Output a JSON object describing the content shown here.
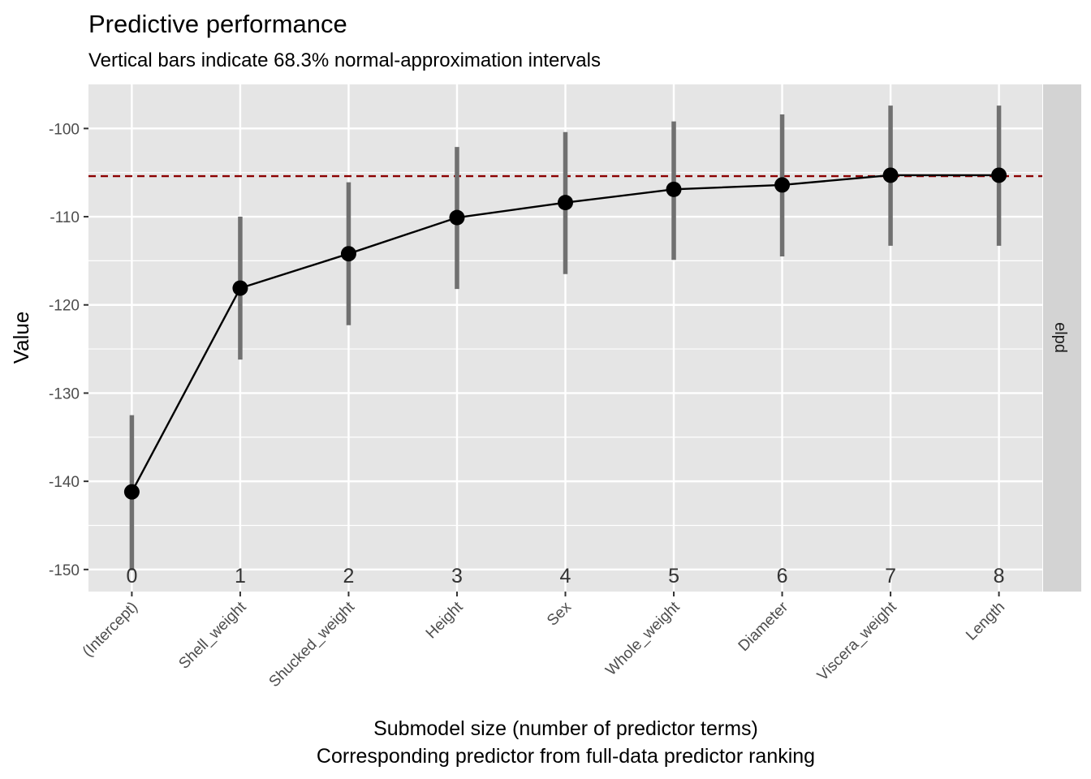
{
  "chart_data": {
    "type": "line",
    "title": "Predictive performance",
    "subtitle": "Vertical bars indicate 68.3% normal-approximation intervals",
    "xlabel": "Submodel size (number of predictor terms)",
    "xlabel2": "Corresponding predictor from full-data predictor ranking",
    "ylabel": "Value",
    "facet_label": "elpd",
    "x": [
      0,
      1,
      2,
      3,
      4,
      5,
      6,
      7,
      8
    ],
    "x_tick_labels": [
      "0",
      "1",
      "2",
      "3",
      "4",
      "5",
      "6",
      "7",
      "8"
    ],
    "predictor_labels": [
      "(Intercept)",
      "Shell_weight",
      "Shucked_weight",
      "Height",
      "Sex",
      "Whole_weight",
      "Diameter",
      "Viscera_weight",
      "Length"
    ],
    "values": [
      -141.2,
      -118.1,
      -114.2,
      -110.1,
      -108.4,
      -106.9,
      -106.4,
      -105.3,
      -105.3
    ],
    "lower": [
      -150.1,
      -126.2,
      -122.3,
      -118.2,
      -116.5,
      -114.9,
      -114.5,
      -113.3,
      -113.3
    ],
    "upper": [
      -132.5,
      -110.0,
      -106.1,
      -102.1,
      -100.4,
      -99.2,
      -98.4,
      -97.4,
      -97.4
    ],
    "reference_value": -105.4,
    "y_ticks": [
      -100,
      -110,
      -120,
      -130,
      -140,
      -150
    ],
    "y_tick_labels": [
      "-100",
      "-110",
      "-120",
      "-130",
      "-140",
      "-150"
    ],
    "ylim": [
      -152.5,
      -95
    ],
    "xlim": [
      -0.4,
      8.4
    ],
    "grid": true,
    "colors": {
      "panel_bg": "#e5e5e5",
      "grid": "#ffffff",
      "strip_bg": "#d3d3d3",
      "reference_line": "#8b0000",
      "interval": "#707070",
      "point": "#000000"
    }
  }
}
